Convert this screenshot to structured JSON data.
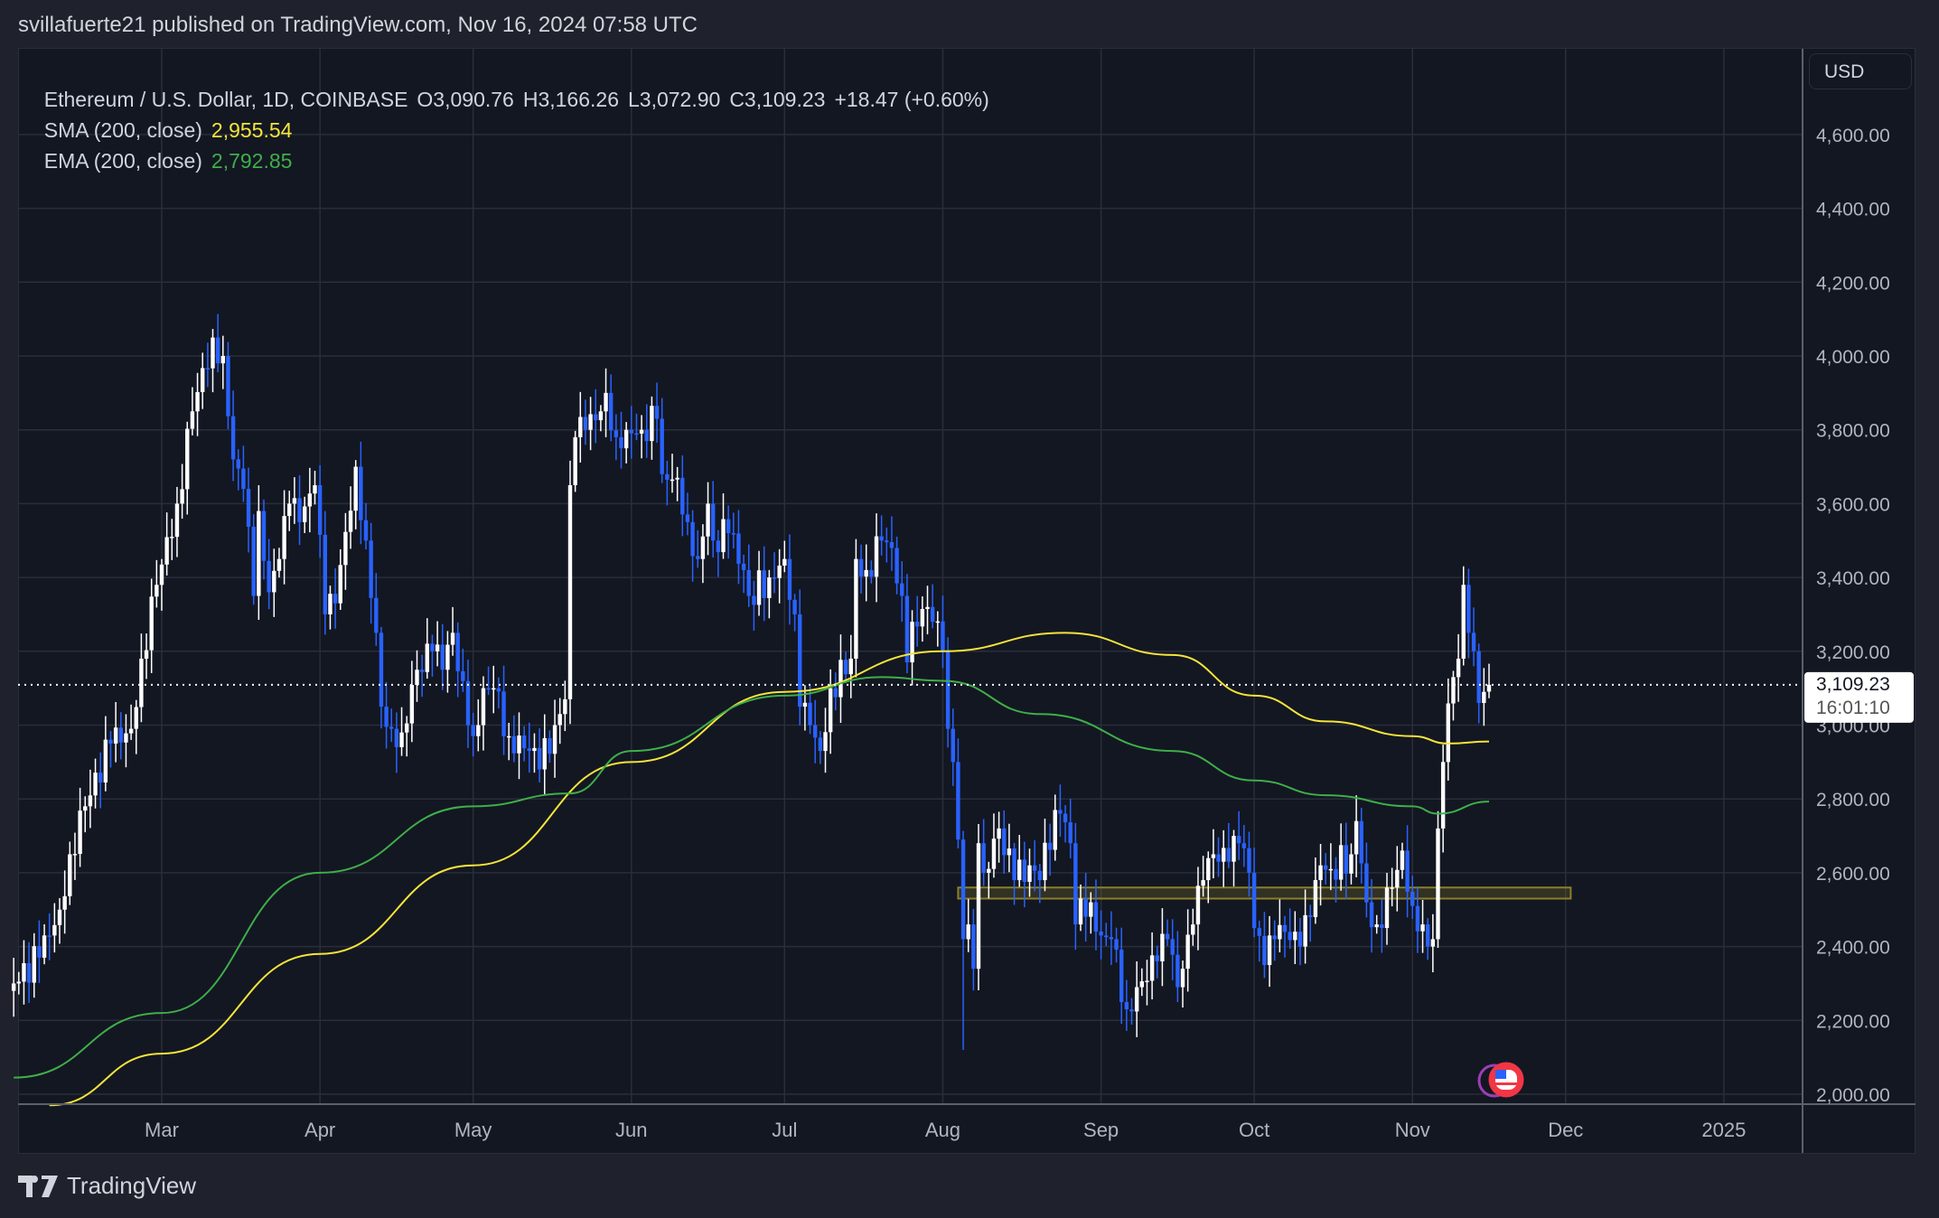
{
  "header": {
    "published": "svillafuerte21 published on TradingView.com, Nov 16, 2024 07:58 UTC"
  },
  "legend": {
    "symbol": "Ethereum / U.S. Dollar, 1D, COINBASE",
    "open": "O3,090.76",
    "high": "H3,166.26",
    "low": "L3,072.90",
    "close": "C3,109.23",
    "change": "+18.47 (+0.60%)",
    "sma_label": "SMA (200, close)",
    "sma_value": "2,955.54",
    "ema_label": "EMA (200, close)",
    "ema_value": "2,792.85"
  },
  "price_axis": {
    "currency": "USD",
    "last_price": "3,109.23",
    "countdown": "16:01:10"
  },
  "footer": {
    "brand": "TradingView"
  },
  "colors": {
    "up": "#ffffff",
    "down": "#2962ff",
    "sma": "#f5e43a",
    "ema": "#3fae49",
    "zone": "#8b7f2a",
    "background": "#131722",
    "grid": "#2a2e39"
  },
  "icons": [
    "tradingview-logo-icon",
    "us-flag-event-icon",
    "event-marker-icon"
  ],
  "chart_data": {
    "type": "candlestick",
    "title": "Ethereum / U.S. Dollar, 1D, COINBASE",
    "ylim": [
      1970,
      4780
    ],
    "xlim": [
      "2024-02-01",
      "2025-01-15"
    ],
    "grid": true,
    "y_ticks": [
      2000,
      2200,
      2400,
      2600,
      2800,
      3000,
      3200,
      3400,
      3600,
      3800,
      4000,
      4200,
      4400,
      4600
    ],
    "y_tick_labels": [
      "2,000.00",
      "2,200.00",
      "2,400.00",
      "2,600.00",
      "2,800.00",
      "3,000.00",
      "3,200.00",
      "3,400.00",
      "3,600.00",
      "3,800.00",
      "4,000.00",
      "4,200.00",
      "4,400.00",
      "4,600.00"
    ],
    "x_ticks": [
      {
        "date": "2024-03-01",
        "label": "Mar"
      },
      {
        "date": "2024-04-01",
        "label": "Apr"
      },
      {
        "date": "2024-05-01",
        "label": "May"
      },
      {
        "date": "2024-06-01",
        "label": "Jun"
      },
      {
        "date": "2024-07-01",
        "label": "Jul"
      },
      {
        "date": "2024-08-01",
        "label": "Aug"
      },
      {
        "date": "2024-09-01",
        "label": "Sep"
      },
      {
        "date": "2024-10-01",
        "label": "Oct"
      },
      {
        "date": "2024-11-01",
        "label": "Nov"
      },
      {
        "date": "2024-12-01",
        "label": "Dec"
      },
      {
        "date": "2025-01-01",
        "label": "2025"
      }
    ],
    "close_points": [
      [
        "2024-02-01",
        2300
      ],
      [
        "2024-02-06",
        2370
      ],
      [
        "2024-02-08",
        2430
      ],
      [
        "2024-02-10",
        2500
      ],
      [
        "2024-02-12",
        2650
      ],
      [
        "2024-02-15",
        2780
      ],
      [
        "2024-02-20",
        2950
      ],
      [
        "2024-02-24",
        2990
      ],
      [
        "2024-02-26",
        3180
      ],
      [
        "2024-02-29",
        3380
      ],
      [
        "2024-03-04",
        3600
      ],
      [
        "2024-03-07",
        3850
      ],
      [
        "2024-03-11",
        4050
      ],
      [
        "2024-03-12",
        3980
      ],
      [
        "2024-03-13",
        4000
      ],
      [
        "2024-03-15",
        3720
      ],
      [
        "2024-03-17",
        3640
      ],
      [
        "2024-03-19",
        3350
      ],
      [
        "2024-03-20",
        3580
      ],
      [
        "2024-03-22",
        3360
      ],
      [
        "2024-03-24",
        3450
      ],
      [
        "2024-03-26",
        3600
      ],
      [
        "2024-03-28",
        3550
      ],
      [
        "2024-03-31",
        3650
      ],
      [
        "2024-04-02",
        3300
      ],
      [
        "2024-04-04",
        3330
      ],
      [
        "2024-04-08",
        3700
      ],
      [
        "2024-04-10",
        3500
      ],
      [
        "2024-04-12",
        3250
      ],
      [
        "2024-04-13",
        3050
      ],
      [
        "2024-04-15",
        2990
      ],
      [
        "2024-04-17",
        2980
      ],
      [
        "2024-04-20",
        3150
      ],
      [
        "2024-04-23",
        3200
      ],
      [
        "2024-04-25",
        3150
      ],
      [
        "2024-04-27",
        3250
      ],
      [
        "2024-04-30",
        3000
      ],
      [
        "2024-05-01",
        2970
      ],
      [
        "2024-05-03",
        3100
      ],
      [
        "2024-05-05",
        3100
      ],
      [
        "2024-05-08",
        2970
      ],
      [
        "2024-05-12",
        2930
      ],
      [
        "2024-05-14",
        2880
      ],
      [
        "2024-05-17",
        3000
      ],
      [
        "2024-05-19",
        3070
      ],
      [
        "2024-05-20",
        3650
      ],
      [
        "2024-05-21",
        3780
      ],
      [
        "2024-05-23",
        3800
      ],
      [
        "2024-05-26",
        3850
      ],
      [
        "2024-05-27",
        3900
      ],
      [
        "2024-05-29",
        3780
      ],
      [
        "2024-05-31",
        3800
      ],
      [
        "2024-06-03",
        3800
      ],
      [
        "2024-06-06",
        3830
      ],
      [
        "2024-06-07",
        3680
      ],
      [
        "2024-06-10",
        3670
      ],
      [
        "2024-06-12",
        3550
      ],
      [
        "2024-06-14",
        3450
      ],
      [
        "2024-06-16",
        3600
      ],
      [
        "2024-06-17",
        3500
      ],
      [
        "2024-06-20",
        3520
      ],
      [
        "2024-06-23",
        3420
      ],
      [
        "2024-06-24",
        3350
      ],
      [
        "2024-06-28",
        3400
      ],
      [
        "2024-07-01",
        3450
      ],
      [
        "2024-07-03",
        3300
      ],
      [
        "2024-07-04",
        3050
      ],
      [
        "2024-07-06",
        3000
      ],
      [
        "2024-07-08",
        2930
      ],
      [
        "2024-07-10",
        3100
      ],
      [
        "2024-07-14",
        3180
      ],
      [
        "2024-07-15",
        3450
      ],
      [
        "2024-07-17",
        3420
      ],
      [
        "2024-07-20",
        3500
      ],
      [
        "2024-07-22",
        3480
      ],
      [
        "2024-07-24",
        3350
      ],
      [
        "2024-07-25",
        3170
      ],
      [
        "2024-07-26",
        3280
      ],
      [
        "2024-07-29",
        3320
      ],
      [
        "2024-07-30",
        3280
      ],
      [
        "2024-08-01",
        3200
      ],
      [
        "2024-08-02",
        2990
      ],
      [
        "2024-08-03",
        2900
      ],
      [
        "2024-08-04",
        2690
      ],
      [
        "2024-08-05",
        2420
      ],
      [
        "2024-08-06",
        2460
      ],
      [
        "2024-08-07",
        2340
      ],
      [
        "2024-08-08",
        2680
      ],
      [
        "2024-08-09",
        2600
      ],
      [
        "2024-08-12",
        2720
      ],
      [
        "2024-08-15",
        2580
      ],
      [
        "2024-08-18",
        2620
      ],
      [
        "2024-08-20",
        2580
      ],
      [
        "2024-08-23",
        2770
      ],
      [
        "2024-08-24",
        2760
      ],
      [
        "2024-08-26",
        2680
      ],
      [
        "2024-08-27",
        2460
      ],
      [
        "2024-08-28",
        2530
      ],
      [
        "2024-08-30",
        2520
      ],
      [
        "2024-09-01",
        2430
      ],
      [
        "2024-09-03",
        2420
      ],
      [
        "2024-09-06",
        2230
      ],
      [
        "2024-09-08",
        2290
      ],
      [
        "2024-09-12",
        2360
      ],
      [
        "2024-09-14",
        2420
      ],
      [
        "2024-09-16",
        2290
      ],
      [
        "2024-09-17",
        2340
      ],
      [
        "2024-09-19",
        2460
      ],
      [
        "2024-09-21",
        2580
      ],
      [
        "2024-09-23",
        2650
      ],
      [
        "2024-09-26",
        2630
      ],
      [
        "2024-09-28",
        2680
      ],
      [
        "2024-09-30",
        2600
      ],
      [
        "2024-10-01",
        2450
      ],
      [
        "2024-10-03",
        2350
      ],
      [
        "2024-10-05",
        2420
      ],
      [
        "2024-10-07",
        2440
      ],
      [
        "2024-10-10",
        2400
      ],
      [
        "2024-10-12",
        2480
      ],
      [
        "2024-10-14",
        2620
      ],
      [
        "2024-10-16",
        2610
      ],
      [
        "2024-10-20",
        2650
      ],
      [
        "2024-10-21",
        2740
      ],
      [
        "2024-10-23",
        2520
      ],
      [
        "2024-10-25",
        2460
      ],
      [
        "2024-10-28",
        2560
      ],
      [
        "2024-10-30",
        2660
      ],
      [
        "2024-11-01",
        2510
      ],
      [
        "2024-11-03",
        2460
      ],
      [
        "2024-11-04",
        2400
      ],
      [
        "2024-11-05",
        2420
      ],
      [
        "2024-11-06",
        2720
      ],
      [
        "2024-11-07",
        2900
      ],
      [
        "2024-11-09",
        3130
      ],
      [
        "2024-11-10",
        3180
      ],
      [
        "2024-11-11",
        3380
      ],
      [
        "2024-11-12",
        3250
      ],
      [
        "2024-11-13",
        3200
      ],
      [
        "2024-11-14",
        3060
      ],
      [
        "2024-11-15",
        3090
      ],
      [
        "2024-11-16",
        3109.23
      ]
    ],
    "last": {
      "open": 3090.76,
      "high": 3166.26,
      "low": 3072.9,
      "close": 3109.23
    },
    "sma_200": [
      [
        "2024-02-08",
        1970
      ],
      [
        "2024-03-01",
        2110
      ],
      [
        "2024-04-01",
        2380
      ],
      [
        "2024-05-01",
        2620
      ],
      [
        "2024-06-01",
        2900
      ],
      [
        "2024-07-01",
        3090
      ],
      [
        "2024-08-01",
        3200
      ],
      [
        "2024-08-25",
        3250
      ],
      [
        "2024-09-15",
        3190
      ],
      [
        "2024-10-01",
        3080
      ],
      [
        "2024-10-15",
        3010
      ],
      [
        "2024-11-01",
        2970
      ],
      [
        "2024-11-08",
        2950
      ],
      [
        "2024-11-16",
        2955.54
      ]
    ],
    "ema_200": [
      [
        "2024-02-01",
        2045
      ],
      [
        "2024-03-01",
        2220
      ],
      [
        "2024-04-01",
        2600
      ],
      [
        "2024-05-01",
        2780
      ],
      [
        "2024-05-20",
        2815
      ],
      [
        "2024-06-01",
        2930
      ],
      [
        "2024-07-01",
        3080
      ],
      [
        "2024-07-20",
        3130
      ],
      [
        "2024-08-01",
        3120
      ],
      [
        "2024-08-20",
        3030
      ],
      [
        "2024-09-15",
        2930
      ],
      [
        "2024-10-01",
        2850
      ],
      [
        "2024-10-15",
        2810
      ],
      [
        "2024-11-01",
        2780
      ],
      [
        "2024-11-06",
        2760
      ],
      [
        "2024-11-16",
        2792.85
      ]
    ],
    "zone": {
      "from": "2024-08-04",
      "to": "2024-12-02",
      "low": 2530,
      "high": 2560
    }
  }
}
